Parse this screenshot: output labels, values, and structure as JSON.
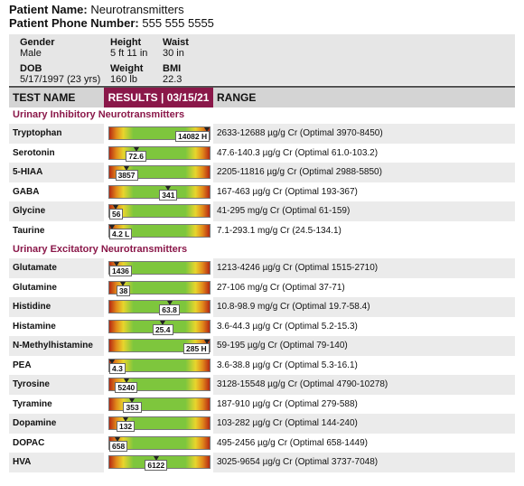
{
  "patient": {
    "name_label": "Patient Name:",
    "name": "Neurotransmitters",
    "phone_label": "Patient Phone Number:",
    "phone": "555 555 5555"
  },
  "info": [
    {
      "label": "Gender",
      "value": "Male"
    },
    {
      "label": "Height",
      "value": "5 ft 11 in"
    },
    {
      "label": "Waist",
      "value": "30 in"
    },
    {
      "label": "DOB",
      "value": "5/17/1997 (23 yrs)"
    },
    {
      "label": "Weight",
      "value": "160 lb"
    },
    {
      "label": "BMI",
      "value": "22.3"
    }
  ],
  "table": {
    "headers": [
      "TEST NAME",
      "RESULTS | 03/15/21",
      "RANGE"
    ],
    "sections": [
      {
        "title": "Urinary Inhibitory Neurotransmitters",
        "rows": [
          [
            "Tryptophan",
            "14082 H",
            "2633-12688 µg/g Cr (Optimal 3970-8450)"
          ],
          [
            "Serotonin",
            "72.6",
            "47.6-140.3 µg/g Cr (Optimal 61.0-103.2)"
          ],
          [
            "5-HIAA",
            "3857",
            "2205-11816 µg/g Cr (Optimal 2988-5850)"
          ],
          [
            "GABA",
            "341",
            "167-463 µg/g Cr (Optimal 193-367)"
          ],
          [
            "Glycine",
            "56",
            "41-295 mg/g Cr (Optimal 61-159)"
          ],
          [
            "Taurine",
            "4.2 L",
            "7.1-293.1 mg/g Cr (24.5-134.1)"
          ]
        ]
      },
      {
        "title": "Urinary Excitatory Neurotransmitters",
        "rows": [
          [
            "Glutamate",
            "1436",
            "1213-4246 µg/g Cr (Optimal 1515-2710)"
          ],
          [
            "Glutamine",
            "38",
            "27-106 mg/g Cr (Optimal 37-71)"
          ],
          [
            "Histidine",
            "63.8",
            "10.8-98.9 mg/g Cr (Optimal 19.7-58.4)"
          ],
          [
            "Histamine",
            "25.4",
            "3.6-44.3 µg/g Cr (Optimal 5.2-15.3)"
          ],
          [
            "N-Methylhistamine",
            "285 H",
            "59-195 µg/g Cr (Optimal 79-140)"
          ],
          [
            "PEA",
            "4.3",
            "3.6-38.8 µg/g Cr (Optimal 5.3-16.1)"
          ],
          [
            "Tyrosine",
            "5240",
            "3128-15548 µg/g Cr (Optimal 4790-10278)"
          ],
          [
            "Tyramine",
            "353",
            "187-910 µg/g Cr (Optimal 279-588)"
          ],
          [
            "Dopamine",
            "132",
            "103-282 µg/g Cr (Optimal 144-240)"
          ],
          [
            "DOPAC",
            "658",
            "495-2456 µg/g Cr (Optimal 658-1449)"
          ],
          [
            "HVA",
            "6122",
            "3025-9654 µg/g Cr (Optimal 3737-7048)"
          ]
        ]
      }
    ]
  }
}
